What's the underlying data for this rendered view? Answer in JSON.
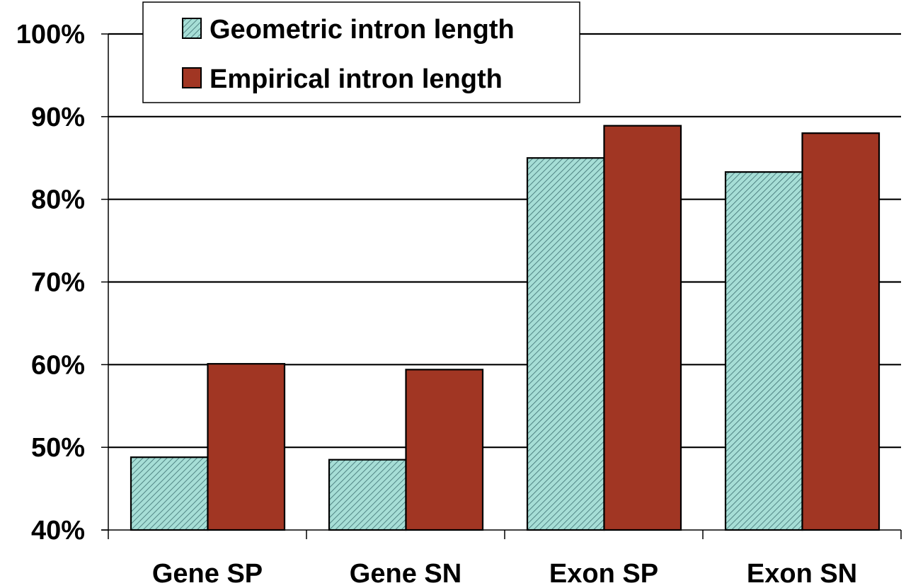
{
  "chart_data": {
    "type": "bar",
    "categories": [
      "Gene SP",
      "Gene SN",
      "Exon SP",
      "Exon SN"
    ],
    "series": [
      {
        "name": "Geometric intron length",
        "values": [
          48.8,
          48.5,
          85.0,
          83.3
        ],
        "color": "#a6ded6",
        "pattern": "diagonal-hatch"
      },
      {
        "name": "Empirical intron length",
        "values": [
          60.1,
          59.4,
          88.9,
          88.0
        ],
        "color": "#a13623",
        "pattern": "solid"
      }
    ],
    "y_ticks": [
      "40%",
      "50%",
      "60%",
      "70%",
      "80%",
      "90%",
      "100%"
    ],
    "ylim": [
      40,
      100
    ],
    "grid": true,
    "legend_position": "top-left"
  }
}
